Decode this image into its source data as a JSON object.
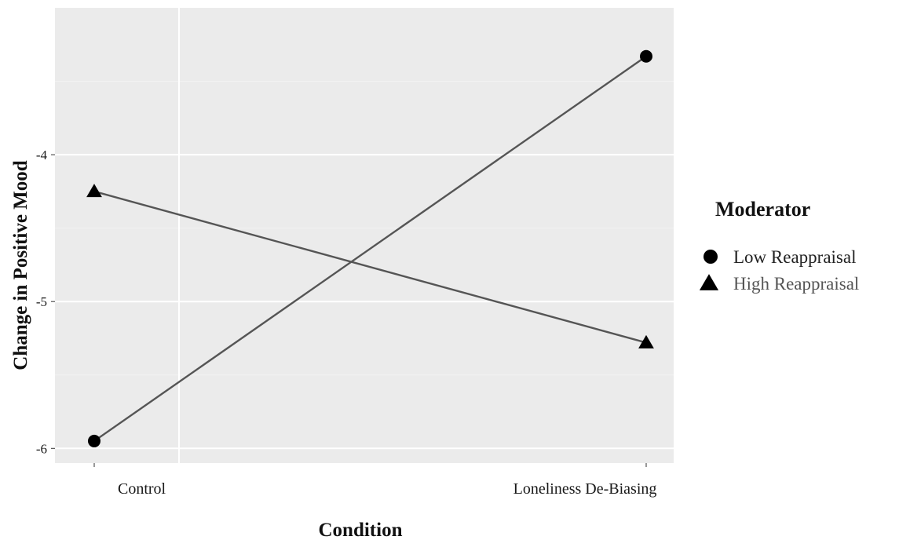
{
  "chart_data": {
    "type": "line",
    "categories": [
      "Control",
      "Loneliness De-Biasing"
    ],
    "series": [
      {
        "name": "Low Reappraisal",
        "marker": "circle",
        "values": [
          -5.95,
          -3.33
        ]
      },
      {
        "name": "High Reappraisal",
        "marker": "triangle",
        "values": [
          -4.25,
          -5.28
        ]
      }
    ],
    "xlabel": "Condition",
    "ylabel": "Change in Positive Mood",
    "yticks": [
      -4,
      -5,
      -6
    ],
    "ylim": [
      -6.1,
      -3.0
    ],
    "grid": true,
    "legend": {
      "title": "Moderator",
      "placement": "right"
    },
    "colors": {
      "panel": "#ebebeb",
      "grid_major": "#ffffff",
      "grid_minor": "#f3f3f3",
      "line": "#555555",
      "marker": "#000000"
    }
  }
}
